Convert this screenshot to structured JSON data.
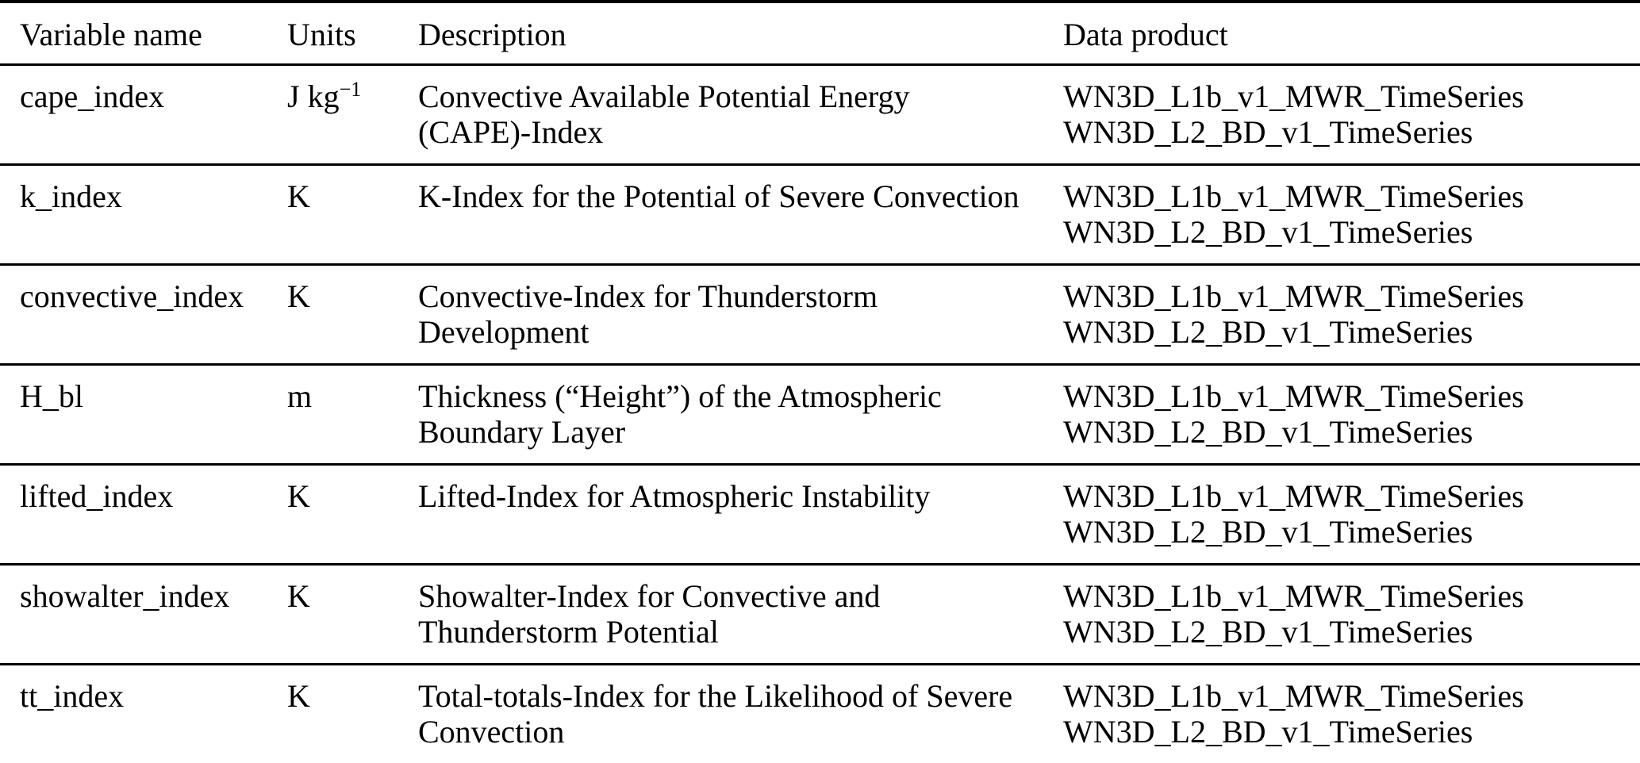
{
  "table": {
    "columns": [
      {
        "label": "Variable name"
      },
      {
        "label": "Units"
      },
      {
        "label": "Description"
      },
      {
        "label": "Data product"
      }
    ],
    "rows": [
      {
        "variable": "cape_index",
        "units_base": "J kg",
        "units_sup": "−1",
        "description": "Convective Available Potential Energy\n(CAPE)-Index",
        "products": [
          "WN3D_L1b_v1_MWR_TimeSeries",
          "WN3D_L2_BD_v1_TimeSeries"
        ]
      },
      {
        "variable": "k_index",
        "units_base": "K",
        "units_sup": "",
        "description": "K-Index for the Potential of Severe Convection",
        "products": [
          "WN3D_L1b_v1_MWR_TimeSeries",
          "WN3D_L2_BD_v1_TimeSeries"
        ]
      },
      {
        "variable": "convective_index",
        "units_base": "K",
        "units_sup": "",
        "description": "Convective-Index for Thunderstorm\nDevelopment",
        "products": [
          "WN3D_L1b_v1_MWR_TimeSeries",
          "WN3D_L2_BD_v1_TimeSeries"
        ]
      },
      {
        "variable": "H_bl",
        "units_base": "m",
        "units_sup": "",
        "description": "Thickness (“Height”) of the Atmospheric\nBoundary Layer",
        "products": [
          "WN3D_L1b_v1_MWR_TimeSeries",
          "WN3D_L2_BD_v1_TimeSeries"
        ]
      },
      {
        "variable": "lifted_index",
        "units_base": "K",
        "units_sup": "",
        "description": "Lifted-Index for Atmospheric Instability",
        "products": [
          "WN3D_L1b_v1_MWR_TimeSeries",
          "WN3D_L2_BD_v1_TimeSeries"
        ]
      },
      {
        "variable": "showalter_index",
        "units_base": "K",
        "units_sup": "",
        "description": "Showalter-Index for Convective and\nThunderstorm Potential",
        "products": [
          "WN3D_L1b_v1_MWR_TimeSeries",
          "WN3D_L2_BD_v1_TimeSeries"
        ]
      },
      {
        "variable": "tt_index",
        "units_base": "K",
        "units_sup": "",
        "description": "Total-totals-Index for the Likelihood of Severe\nConvection",
        "products": [
          "WN3D_L1b_v1_MWR_TimeSeries",
          "WN3D_L2_BD_v1_TimeSeries"
        ]
      }
    ]
  }
}
